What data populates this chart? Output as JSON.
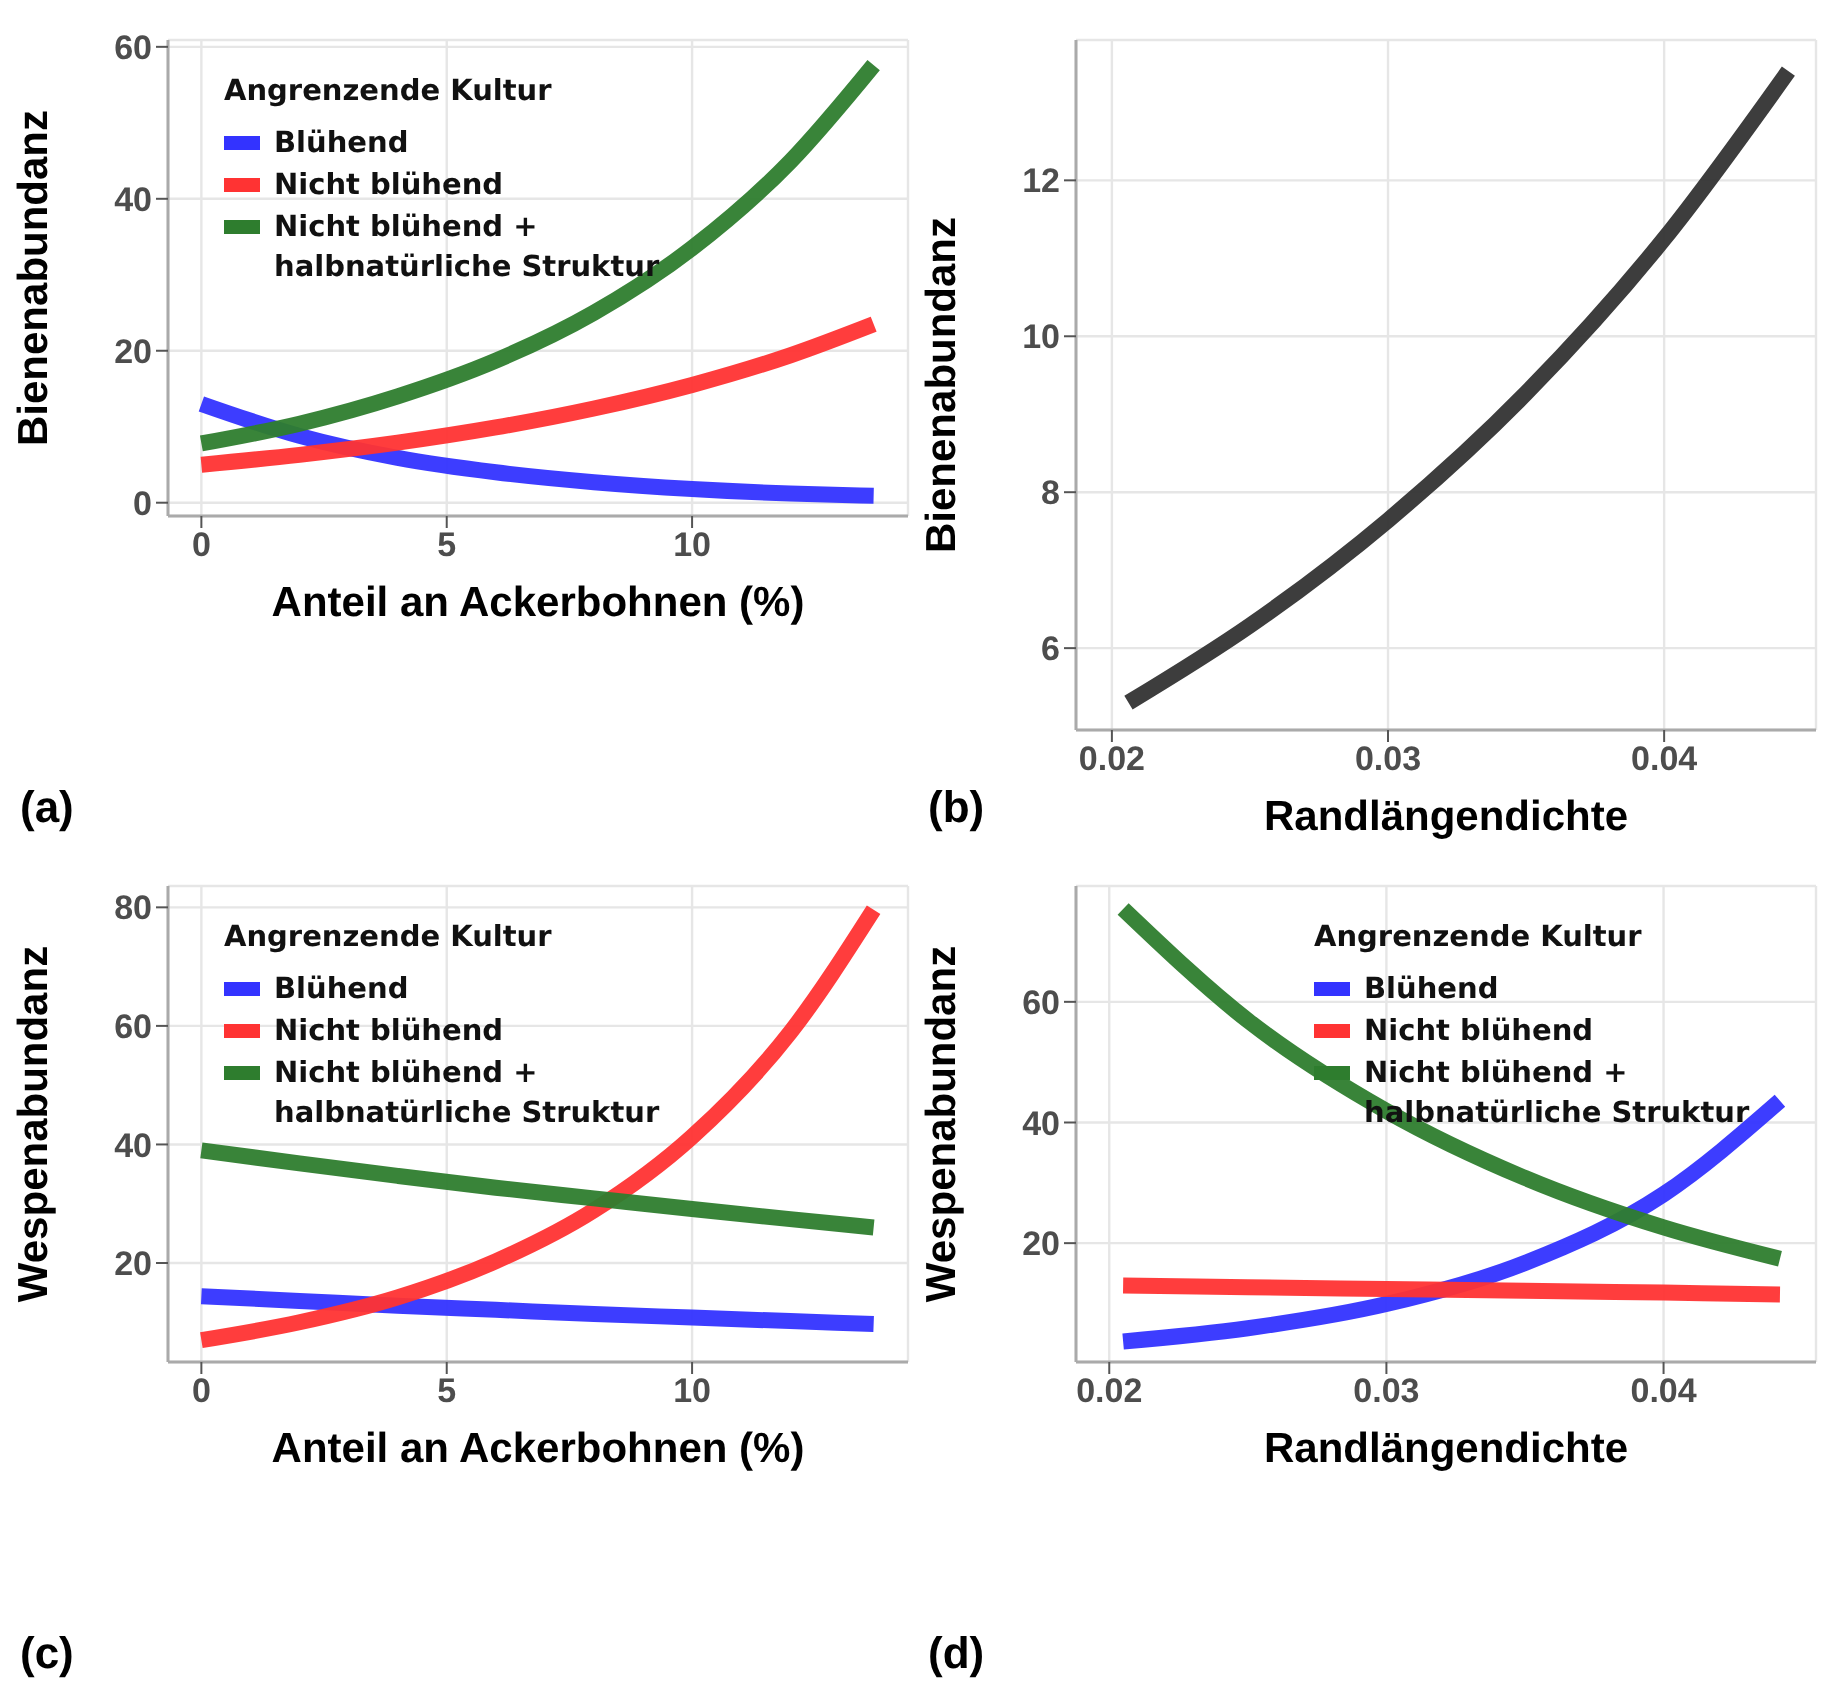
{
  "chart_data": [
    {
      "type": "line",
      "xlabel": "Anteil an Ackerbohnen (%)",
      "ylabel": "Bienenabundanz",
      "legend_title": "Angrenzende Kultur",
      "legend": "top left",
      "grid": true,
      "annotations": [
        "(a)"
      ],
      "x": [
        0,
        2,
        4,
        6,
        8,
        10,
        12,
        13.7
      ],
      "xlim": [
        -0.68,
        14.4
      ],
      "xticks": [
        0,
        5,
        10
      ],
      "ylim": [
        -1.75,
        60.9
      ],
      "yticks": [
        0,
        20,
        40,
        60
      ],
      "series": [
        {
          "name": "Blühend",
          "color": "#3333ff",
          "values": [
            13,
            8.8,
            5.9,
            4.0,
            2.7,
            1.8,
            1.2,
            0.9
          ]
        },
        {
          "name": "Nicht blühend",
          "color": "#ff3333",
          "values": [
            5,
            6.3,
            7.9,
            9.9,
            12.4,
            15.5,
            19.4,
            23.5
          ]
        },
        {
          "name": "Nicht blühend + halbnatürliche Struktur",
          "color": "#2e7d2e",
          "values": [
            7.8,
            10.4,
            14.0,
            18.7,
            25.0,
            33.5,
            44.9,
            57.6
          ]
        }
      ]
    },
    {
      "type": "line",
      "xlabel": "Randlängendichte",
      "ylabel": "Bienenabundanz",
      "grid": true,
      "annotations": [
        "(b)"
      ],
      "x": [
        0.0206,
        0.025,
        0.03,
        0.035,
        0.04,
        0.0445
      ],
      "xlim": [
        0.0187,
        0.0455
      ],
      "xticks": [
        0.02,
        0.03,
        0.04
      ],
      "ylim": [
        4.95,
        13.8
      ],
      "yticks": [
        6,
        8,
        10,
        12
      ],
      "series": [
        {
          "color": "#333333",
          "values": [
            5.3,
            6.29,
            7.64,
            9.27,
            11.25,
            13.4
          ]
        }
      ]
    },
    {
      "type": "line",
      "xlabel": "Anteil an Ackerbohnen (%)",
      "ylabel": "Wespenabundanz",
      "legend_title": "Angrenzende Kultur",
      "legend": "top left",
      "grid": true,
      "annotations": [
        "(c)"
      ],
      "x": [
        0,
        2,
        4,
        6,
        8,
        10,
        12,
        13.7
      ],
      "xlim": [
        -0.68,
        14.4
      ],
      "xticks": [
        0,
        5,
        10
      ],
      "ylim": [
        3.3,
        83.6
      ],
      "yticks": [
        20,
        40,
        60,
        80
      ],
      "series": [
        {
          "name": "Blühend",
          "color": "#3333ff",
          "values": [
            14.4,
            13.6,
            12.8,
            12.1,
            11.4,
            10.8,
            10.2,
            9.7
          ]
        },
        {
          "name": "Nicht blühend",
          "color": "#ff3333",
          "values": [
            7,
            10,
            14.2,
            20.3,
            28.9,
            41.3,
            58.9,
            79.6
          ]
        },
        {
          "name": "Nicht blühend + halbnatürliche Struktur",
          "color": "#2e7d2e",
          "values": [
            39,
            36.8,
            34.7,
            32.7,
            30.9,
            29.1,
            27.4,
            26
          ]
        }
      ]
    },
    {
      "type": "line",
      "xlabel": "Randlängendichte",
      "ylabel": "Wespenabundanz",
      "legend_title": "Angrenzende Kultur",
      "legend": "top right",
      "grid": true,
      "annotations": [
        "(d)"
      ],
      "x": [
        0.0205,
        0.025,
        0.03,
        0.035,
        0.04,
        0.0442
      ],
      "xlim": [
        0.0188,
        0.0455
      ],
      "xticks": [
        0.02,
        0.03,
        0.04
      ],
      "ylim": [
        0.3,
        79.2
      ],
      "yticks": [
        20,
        40,
        60
      ],
      "series": [
        {
          "name": "Blühend",
          "color": "#3333ff",
          "values": [
            3.7,
            5.9,
            9.9,
            16.7,
            28.1,
            43.6
          ]
        },
        {
          "name": "Nicht blühend",
          "color": "#ff3333",
          "values": [
            13.0,
            12.7,
            12.4,
            12.1,
            11.8,
            11.5
          ]
        },
        {
          "name": "Nicht blühend + halbnatürliche Struktur",
          "color": "#2e7d2e",
          "values": [
            75.4,
            56.9,
            41.9,
            30.8,
            22.6,
            17.4
          ]
        }
      ]
    }
  ]
}
